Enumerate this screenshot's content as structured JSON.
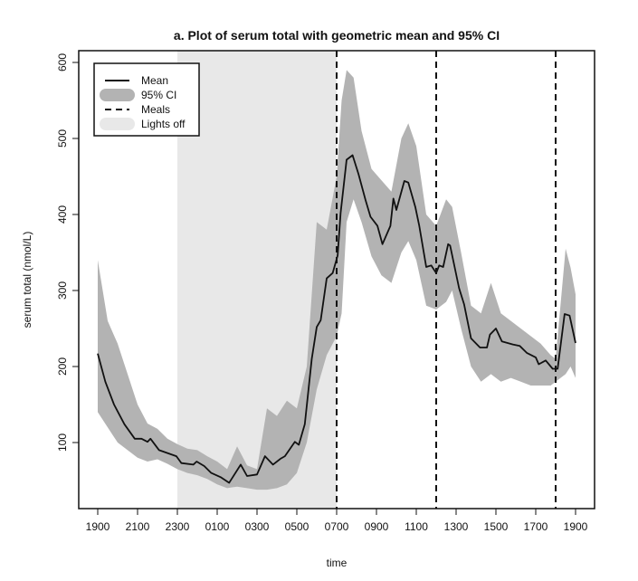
{
  "chart_data": {
    "type": "line",
    "title": "a. Plot of serum total with geometric mean and 95% CI",
    "xlabel": "time",
    "ylabel": "serum total (nmol/L)",
    "x_unit": "hours since 1900",
    "xlim": [
      0,
      24
    ],
    "ylim": [
      0,
      600
    ],
    "x_ticks": [
      0,
      2,
      4,
      6,
      8,
      10,
      12,
      14,
      16,
      18,
      20,
      22,
      24
    ],
    "x_tick_labels": [
      "1900",
      "2100",
      "2300",
      "0100",
      "0300",
      "0500",
      "0700",
      "0900",
      "1100",
      "1300",
      "1500",
      "1700",
      "1900"
    ],
    "y_ticks": [
      100,
      200,
      300,
      400,
      500,
      600
    ],
    "y_tick_labels": [
      "100",
      "200",
      "300",
      "400",
      "500",
      "600"
    ],
    "grid": false,
    "legend": {
      "placement": "top-left",
      "entries": [
        "Mean",
        "95% CI",
        "Meals",
        "Lights off"
      ]
    },
    "lights_off": [
      4,
      12
    ],
    "meals": [
      12,
      17,
      23
    ],
    "colors": {
      "mean": "#111111",
      "ci": "#b3b3b3",
      "lights_off": "#e8e8e8",
      "meals": "#111111"
    },
    "mean": {
      "x": [
        0,
        0.38,
        0.82,
        1.34,
        1.86,
        2.2,
        2.5,
        2.65,
        3.08,
        3.95,
        4.2,
        4.8,
        4.97,
        5.35,
        5.7,
        6.2,
        6.6,
        7.18,
        7.5,
        8.0,
        8.4,
        8.8,
        9.2,
        9.4,
        9.9,
        10.1,
        10.4,
        10.75,
        11.0,
        11.2,
        11.5,
        11.8,
        12.05,
        12.2,
        12.5,
        12.8,
        13.1,
        13.45,
        13.7,
        14.05,
        14.3,
        14.7,
        14.85,
        15.0,
        15.4,
        15.6,
        15.95,
        16.15,
        16.5,
        16.75,
        17.0,
        17.15,
        17.35,
        17.6,
        17.7,
        18.15,
        18.4,
        18.75,
        19.2,
        19.55,
        19.7,
        20.0,
        20.3,
        20.85,
        21.2,
        21.55,
        22.0,
        22.15,
        22.5,
        22.85,
        23.1,
        23.45,
        23.7,
        24.0
      ],
      "y": [
        217,
        180,
        150,
        124,
        105,
        105,
        101,
        105,
        90,
        82,
        73,
        71,
        75,
        69,
        60,
        54,
        47,
        71,
        56,
        58,
        82,
        71,
        79,
        82,
        101,
        97,
        124,
        210,
        252,
        261,
        316,
        323,
        346,
        402,
        472,
        478,
        453,
        419,
        397,
        385,
        361,
        385,
        421,
        406,
        444,
        442,
        410,
        385,
        331,
        333,
        323,
        333,
        331,
        361,
        359,
        303,
        282,
        237,
        225,
        225,
        242,
        250,
        233,
        229,
        227,
        218,
        212,
        203,
        208,
        197,
        197,
        269,
        267,
        231
      ]
    },
    "ci": {
      "x": [
        0,
        0.5,
        1,
        1.5,
        2,
        2.5,
        3,
        3.5,
        4,
        4.5,
        5,
        5.5,
        6,
        6.5,
        7,
        7.5,
        8,
        8.5,
        9,
        9.5,
        10,
        10.5,
        11,
        11.5,
        12,
        12.25,
        12.5,
        12.85,
        13.25,
        13.75,
        14.25,
        14.75,
        15.25,
        15.6,
        16.0,
        16.5,
        17.0,
        17.5,
        17.8,
        18.25,
        18.75,
        19.25,
        19.75,
        20.25,
        20.75,
        21.25,
        21.75,
        22.25,
        22.75,
        23.0,
        23.5,
        23.75,
        24.0
      ],
      "lower": [
        140,
        120,
        100,
        90,
        80,
        75,
        78,
        72,
        65,
        60,
        57,
        52,
        45,
        40,
        42,
        40,
        38,
        38,
        40,
        45,
        60,
        100,
        170,
        215,
        240,
        270,
        390,
        420,
        390,
        345,
        320,
        310,
        350,
        365,
        340,
        280,
        275,
        285,
        300,
        250,
        200,
        180,
        190,
        180,
        185,
        180,
        175,
        175,
        175,
        180,
        190,
        200,
        185
      ],
      "upper": [
        340,
        260,
        230,
        190,
        150,
        125,
        118,
        105,
        98,
        92,
        90,
        82,
        75,
        65,
        95,
        70,
        65,
        145,
        135,
        155,
        145,
        200,
        390,
        380,
        450,
        550,
        590,
        580,
        510,
        460,
        445,
        430,
        500,
        520,
        490,
        400,
        385,
        420,
        410,
        350,
        280,
        270,
        310,
        270,
        260,
        250,
        240,
        230,
        215,
        210,
        355,
        330,
        295
      ]
    }
  }
}
